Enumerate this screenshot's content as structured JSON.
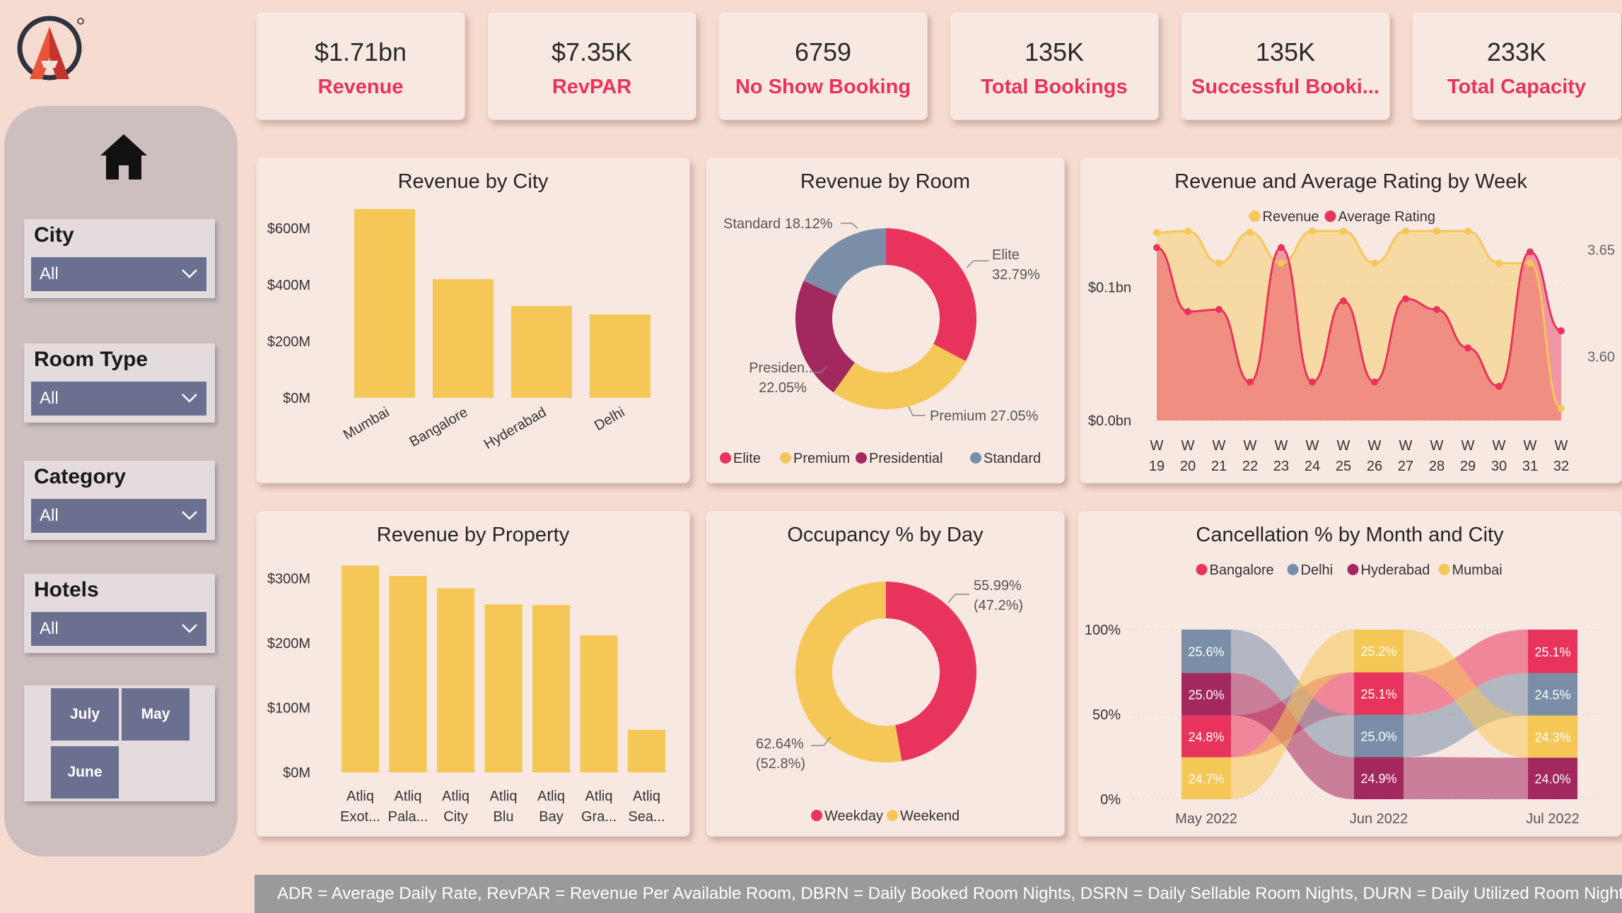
{
  "colors": {
    "yellow": "#f5c757",
    "pink": "#e8345c",
    "purple": "#a3285e",
    "slate": "#7a8ea8",
    "slicer": "#6b7090"
  },
  "logo_icon": "brand-logo",
  "home_icon": "home-icon",
  "kpis": [
    {
      "value": "$1.71bn",
      "label": "Revenue"
    },
    {
      "value": "$7.35K",
      "label": "RevPAR"
    },
    {
      "value": "6759",
      "label": "No Show Booking"
    },
    {
      "value": "135K",
      "label": "Total Bookings"
    },
    {
      "value": "135K",
      "label": "Successful Booki..."
    },
    {
      "value": "233K",
      "label": "Total Capacity"
    }
  ],
  "slicers": {
    "city": {
      "title": "City",
      "value": "All"
    },
    "room_type": {
      "title": "Room Type",
      "value": "All"
    },
    "category": {
      "title": "Category",
      "value": "All"
    },
    "hotels": {
      "title": "Hotels",
      "value": "All"
    }
  },
  "months": {
    "july": "July",
    "may": "May",
    "june": "June"
  },
  "footer": "ADR = Average Daily Rate, RevPAR = Revenue Per Available Room, DBRN = Daily Booked Room Nights, DSRN = Daily Sellable Room Nights, DURN = Daily Utilized Room Nights.",
  "charts": {
    "revenue_by_city": {
      "title": "Revenue by City",
      "yticks": [
        "$0M",
        "$200M",
        "$400M",
        "$600M"
      ]
    },
    "revenue_by_room": {
      "title": "Revenue by Room"
    },
    "revenue_rating_week": {
      "title": "Revenue and Average Rating by Week",
      "legend": [
        "Revenue",
        "Average Rating"
      ],
      "yticks_left": [
        "$0.0bn",
        "$0.1bn"
      ],
      "yticks_right": [
        "3.60",
        "3.65"
      ]
    },
    "revenue_by_property": {
      "title": "Revenue by Property",
      "yticks": [
        "$0M",
        "$100M",
        "$200M",
        "$300M"
      ]
    },
    "occupancy_by_day": {
      "title": "Occupancy % by Day"
    },
    "cancellation": {
      "title": "Cancellation % by Month and City",
      "yticks": [
        "0%",
        "50%",
        "100%"
      ]
    }
  },
  "chart_data": [
    {
      "type": "bar",
      "title": "Revenue by City",
      "categories": [
        "Mumbai",
        "Bangalore",
        "Hyderabad",
        "Delhi"
      ],
      "values": [
        668,
        420,
        325,
        295
      ],
      "ylim": [
        0,
        700
      ],
      "ylabel": "",
      "xlabel": ""
    },
    {
      "type": "pie",
      "title": "Revenue by Room",
      "donut": true,
      "categories": [
        "Elite",
        "Premium",
        "Presidential",
        "Standard"
      ],
      "values": [
        32.79,
        27.05,
        22.05,
        18.12
      ],
      "labels": [
        "Elite\n32.79%",
        "Premium 27.05%",
        "Presiden...\n22.05%",
        "Standard 18.12%"
      ]
    },
    {
      "type": "area",
      "title": "Revenue and Average Rating by Week",
      "x": [
        "W 19",
        "W 20",
        "W 21",
        "W 22",
        "W 23",
        "W 24",
        "W 25",
        "W 26",
        "W 27",
        "W 28",
        "W 29",
        "W 30",
        "W 31",
        "W 32"
      ],
      "series": [
        {
          "name": "Revenue",
          "axis": "left",
          "values": [
            0.141,
            0.142,
            0.118,
            0.141,
            0.118,
            0.142,
            0.142,
            0.118,
            0.142,
            0.142,
            0.142,
            0.118,
            0.118,
            0.009
          ]
        },
        {
          "name": "Average Rating",
          "axis": "right",
          "values": [
            3.651,
            3.621,
            3.622,
            3.588,
            3.651,
            3.588,
            3.626,
            3.588,
            3.627,
            3.622,
            3.604,
            3.586,
            3.649,
            3.612
          ]
        }
      ],
      "ylim_left": [
        0,
        0.16
      ],
      "ylim_right": [
        3.57,
        3.67
      ]
    },
    {
      "type": "bar",
      "title": "Revenue by Property",
      "categories": [
        "Atliq Exot...",
        "Atliq Pala...",
        "Atliq City",
        "Atliq Blu",
        "Atliq Bay",
        "Atliq Gra...",
        "Atliq Sea..."
      ],
      "values": [
        320,
        304,
        285,
        260,
        259,
        212,
        66
      ],
      "ylim": [
        0,
        350
      ]
    },
    {
      "type": "pie",
      "title": "Occupancy % by Day",
      "donut": true,
      "categories": [
        "Weekday",
        "Weekend"
      ],
      "values": [
        55.99,
        62.64
      ],
      "shares": [
        47.2,
        52.8
      ],
      "labels": [
        "55.99%\n(47.2%)",
        "62.64%\n(52.8%)"
      ]
    },
    {
      "type": "area",
      "subtype": "ribbon",
      "title": "Cancellation % by Month and City",
      "categories": [
        "May 2022",
        "Jun 2022",
        "Jul 2022"
      ],
      "series": [
        {
          "name": "Bangalore",
          "values": [
            24.8,
            25.1,
            25.1
          ]
        },
        {
          "name": "Delhi",
          "values": [
            25.6,
            25.0,
            24.5
          ]
        },
        {
          "name": "Hyderabad",
          "values": [
            25.0,
            24.9,
            24.0
          ]
        },
        {
          "name": "Mumbai",
          "values": [
            24.7,
            25.2,
            24.3
          ]
        }
      ],
      "ylim": [
        0,
        100
      ]
    }
  ]
}
